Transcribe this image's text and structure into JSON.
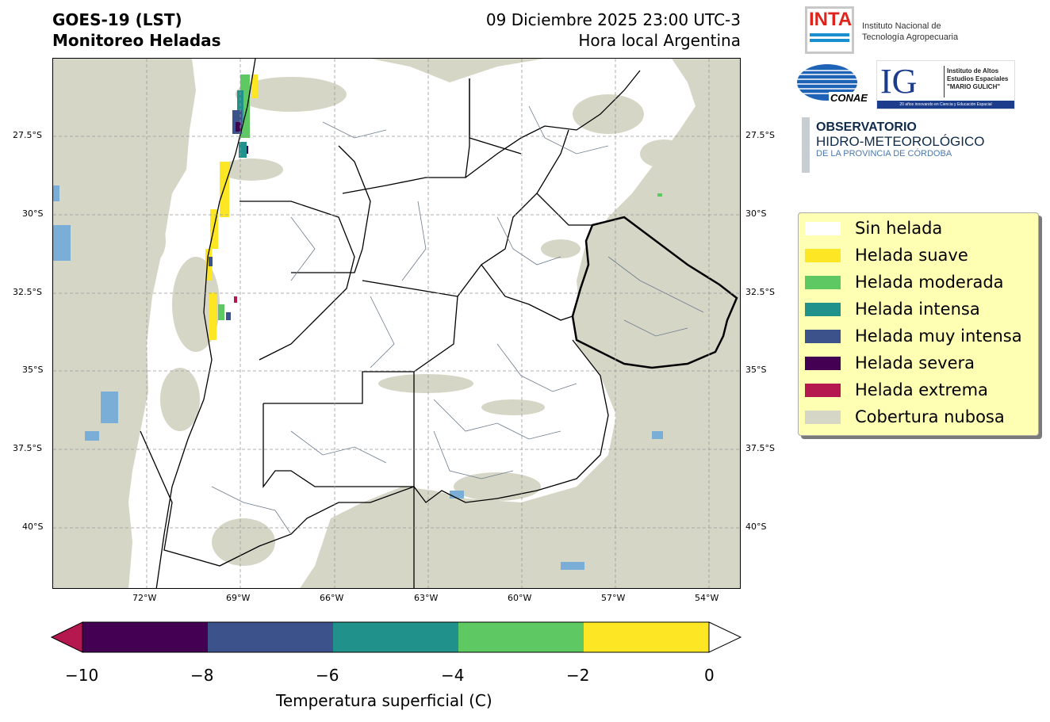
{
  "header": {
    "title_line1": "GOES-19 (LST)",
    "title_line2": "Monitoreo Heladas",
    "date_line1": "09 Diciembre 2025 23:00 UTC-3",
    "date_line2": "Hora local Argentina"
  },
  "map": {
    "lat_labels": [
      "27.5°S",
      "30°S",
      "32.5°S",
      "35°S",
      "37.5°S",
      "40°S"
    ],
    "lon_labels": [
      "72°W",
      "69°W",
      "66°W",
      "63°W",
      "60°W",
      "57°W",
      "54°W"
    ]
  },
  "logos": {
    "inta_mark": "INTA",
    "inta_name_line1": "Instituto Nacional de",
    "inta_name_line2": "Tecnología Agropecuaria",
    "conae_mark": "CONAE",
    "ig_mark": "IG",
    "ig_line1": "Instituto de Altos",
    "ig_line2": "Estudios Espaciales",
    "ig_line3": "\"MARIO GULICH\"",
    "ig_tagline": "20 años innovando en Ciencia y Educación Espacial",
    "obs_line1": "OBSERVATORIO",
    "obs_line2": "HIDRO-METEOROLÓGICO",
    "obs_line3": "DE LA PROVINCIA DE CÓRDOBA"
  },
  "legend": {
    "items": [
      {
        "label": "Sin helada",
        "color": "#ffffff"
      },
      {
        "label": "Helada suave",
        "color": "#fde725"
      },
      {
        "label": "Helada moderada",
        "color": "#5ec962"
      },
      {
        "label": "Helada intensa",
        "color": "#21918c"
      },
      {
        "label": "Helada muy intensa",
        "color": "#3b528b"
      },
      {
        "label": "Helada severa",
        "color": "#440154"
      },
      {
        "label": "Helada extrema",
        "color": "#b5174f"
      },
      {
        "label": "Cobertura nubosa",
        "color": "#d6d6c6"
      }
    ]
  },
  "colorbar": {
    "ticks": [
      "−10",
      "−8",
      "−6",
      "−4",
      "−2",
      "0"
    ],
    "label": "Temperatura superficial (C)",
    "colors": [
      "#440154",
      "#3b528b",
      "#21918c",
      "#5ec962",
      "#fde725"
    ],
    "under_color": "#b5174f",
    "over_color": "#ffffff"
  }
}
